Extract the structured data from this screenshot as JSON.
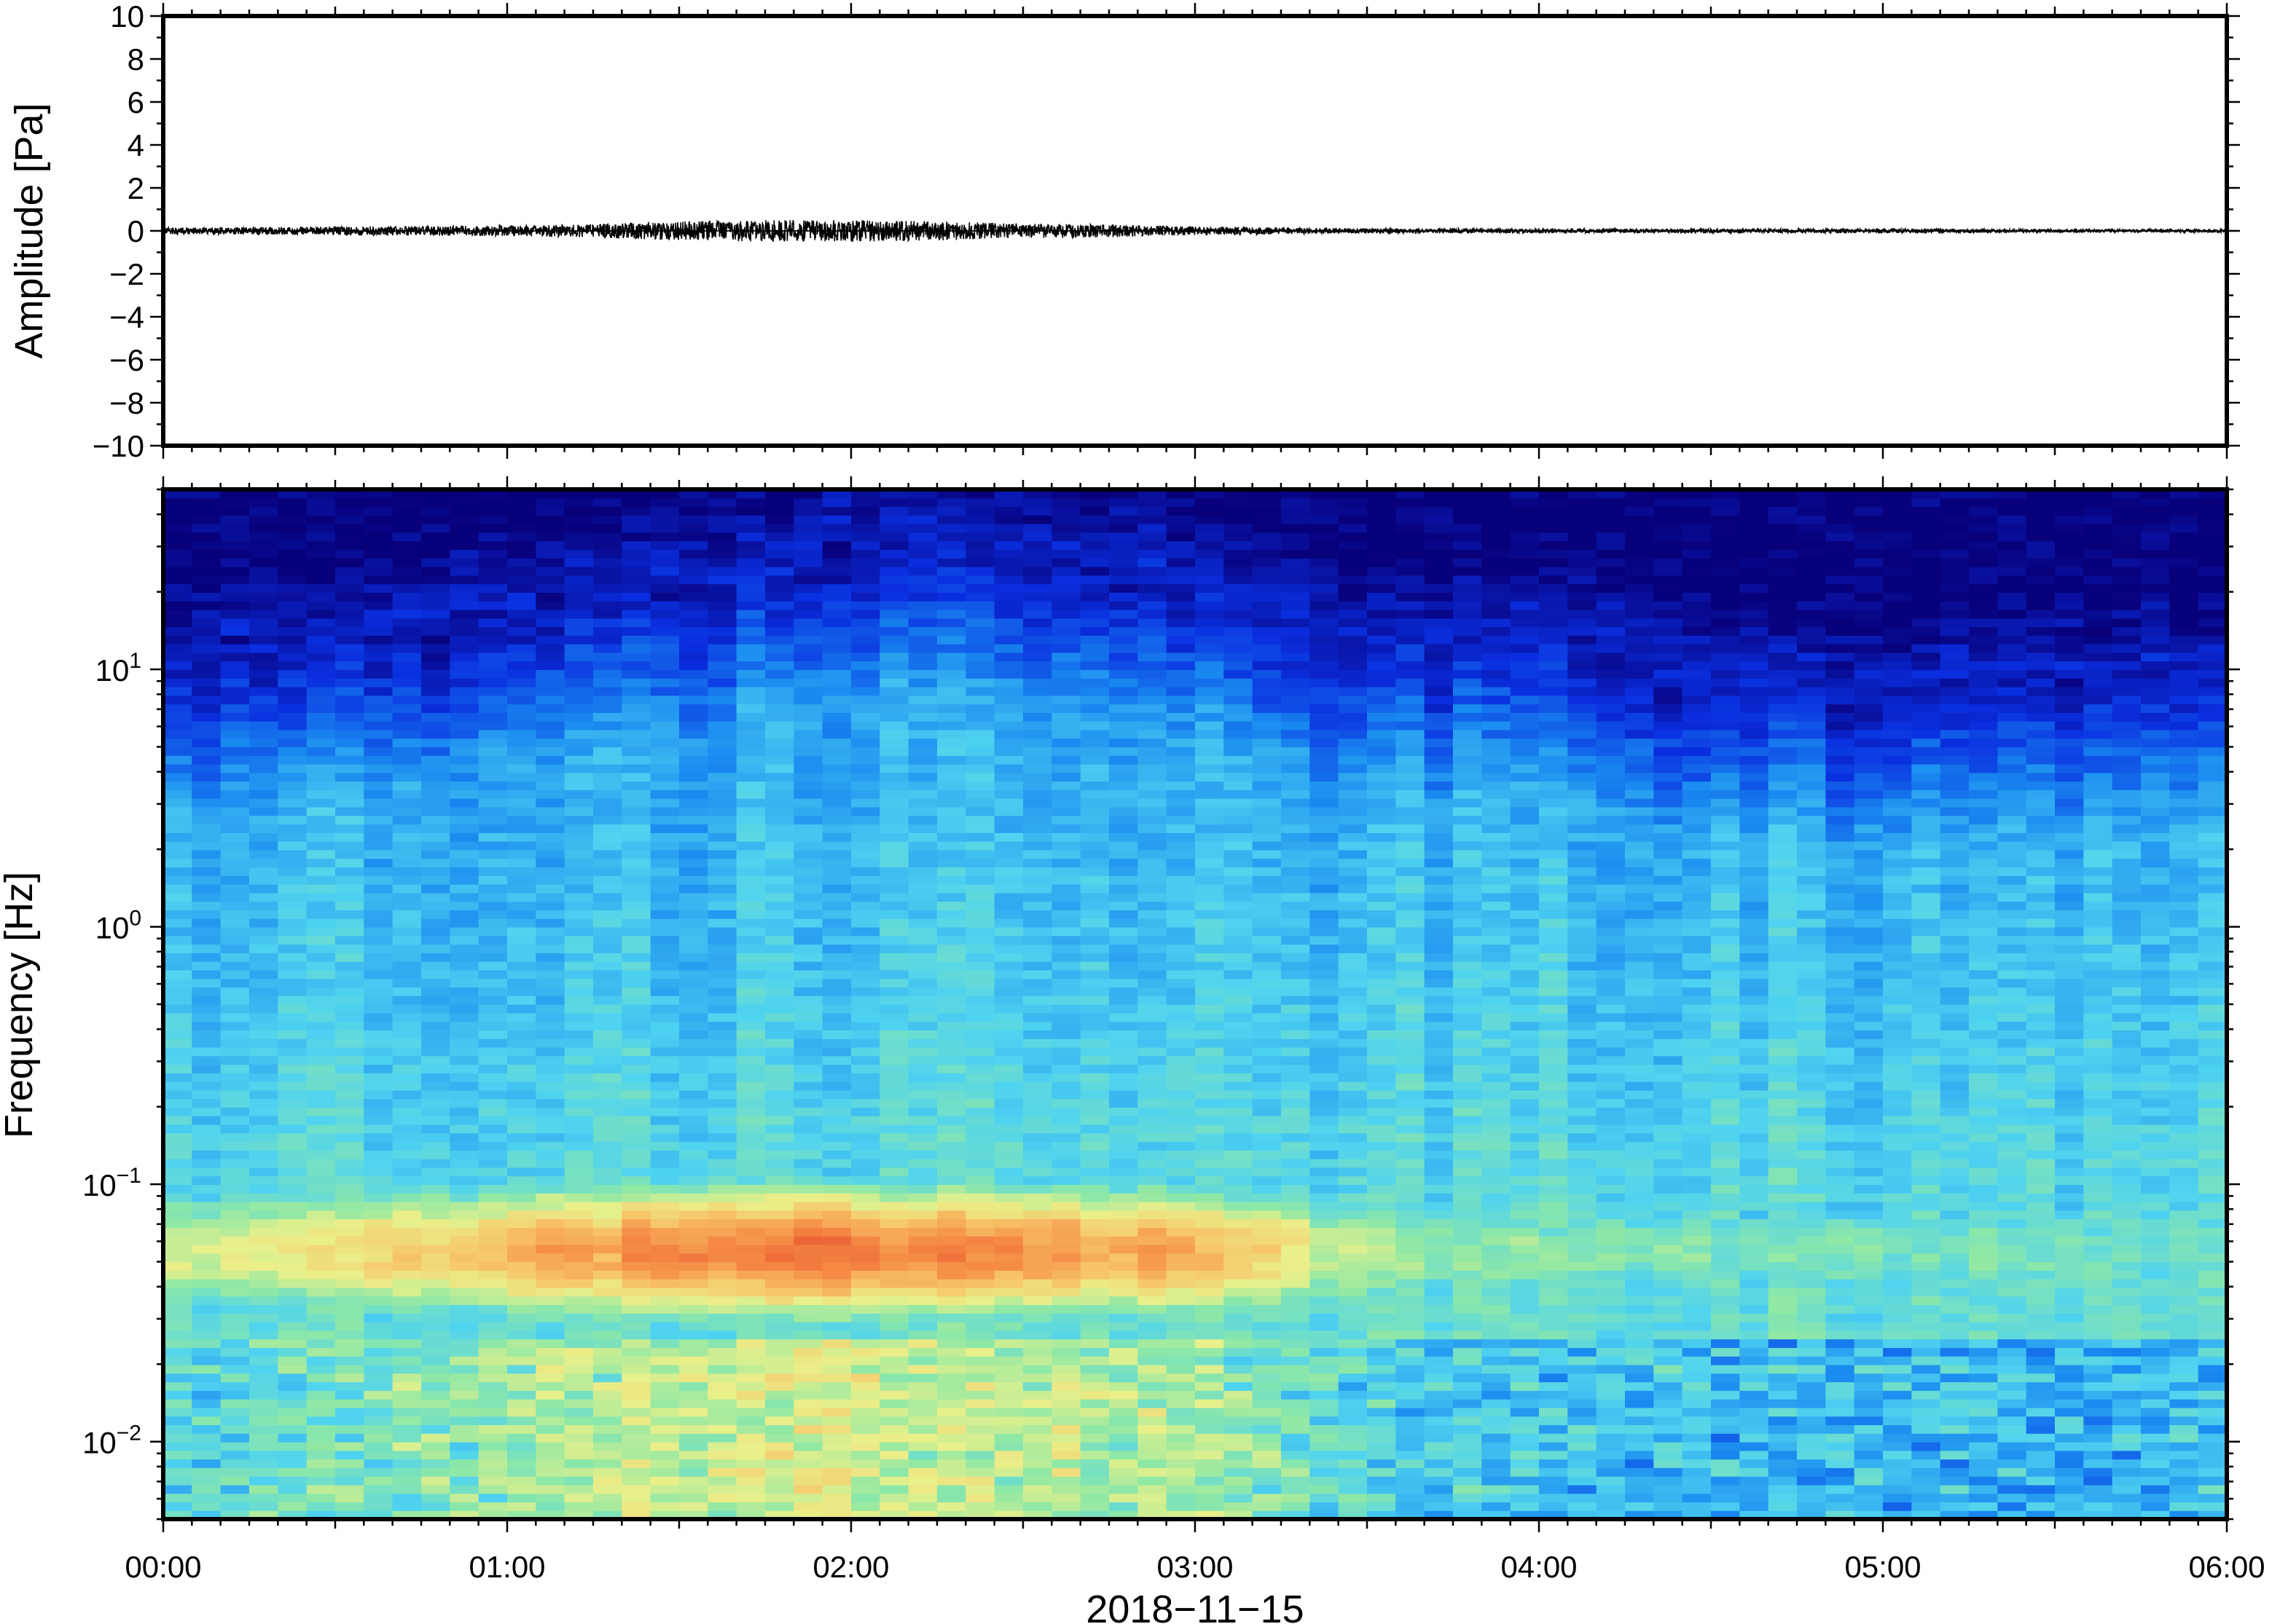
{
  "chart_data": [
    {
      "type": "line",
      "panel": "amplitude",
      "ylabel": "Amplitude [Pa]",
      "ylim": [
        -10,
        10
      ],
      "y_ticks": [
        -10,
        -8,
        -6,
        -4,
        -2,
        0,
        2,
        4,
        6,
        8,
        10
      ],
      "y_tick_labels": [
        "−10",
        "−8",
        "−6",
        "−4",
        "−2",
        "0",
        "2",
        "4",
        "6",
        "8",
        "10"
      ],
      "x_range_hours": [
        0,
        6
      ],
      "series": [
        {
          "envelope_hours": [
            0,
            0.5,
            1.0,
            1.25,
            1.5,
            1.75,
            2.0,
            2.25,
            2.5,
            2.75,
            3.0,
            3.5,
            4.0,
            4.5,
            5.0,
            5.5,
            6.0
          ],
          "envelope_amplitude": [
            0.15,
            0.2,
            0.25,
            0.3,
            0.45,
            0.5,
            0.5,
            0.45,
            0.35,
            0.3,
            0.2,
            0.12,
            0.1,
            0.1,
            0.1,
            0.08,
            0.08
          ],
          "color": "#000000"
        }
      ],
      "grid": false
    },
    {
      "type": "heatmap",
      "panel": "spectrogram",
      "ylabel": "Frequency [Hz]",
      "xlabel": "2018−11−15",
      "y_scale": "log",
      "ylim": [
        0.005,
        50
      ],
      "y_ticks": [
        0.01,
        0.1,
        1,
        10
      ],
      "y_tick_labels": [
        {
          "base": "10",
          "exp": "−2"
        },
        {
          "base": "10",
          "exp": "−1"
        },
        {
          "base": "10",
          "exp": "0"
        },
        {
          "base": "10",
          "exp": "1"
        }
      ],
      "x_ticks_hours": [
        0,
        1,
        2,
        3,
        4,
        5,
        6
      ],
      "x_tick_labels": [
        "00:00",
        "01:00",
        "02:00",
        "03:00",
        "04:00",
        "05:00",
        "06:00"
      ],
      "colormap": [
        "#08007a",
        "#0a2fe0",
        "#1a8cf0",
        "#4fd3f0",
        "#8ee8a6",
        "#e9f08a",
        "#f7c56a",
        "#f58a45",
        "#e8542e"
      ],
      "time_hours": [
        0.0,
        0.5,
        1.0,
        1.5,
        2.0,
        2.5,
        3.0,
        3.5,
        4.0,
        4.5,
        5.0,
        5.5,
        6.0
      ],
      "upper_cutoff_hz": [
        12,
        13,
        16,
        22,
        28,
        27,
        22,
        12,
        14,
        9,
        8,
        9,
        10
      ],
      "peak_band_hz": [
        0.03,
        0.1
      ],
      "peak_intensity": [
        0.62,
        0.66,
        0.78,
        0.92,
        0.93,
        0.9,
        0.8,
        0.55,
        0.5,
        0.48,
        0.47,
        0.46,
        0.45
      ],
      "grid": false
    }
  ],
  "xlabel": "2018−11−15"
}
